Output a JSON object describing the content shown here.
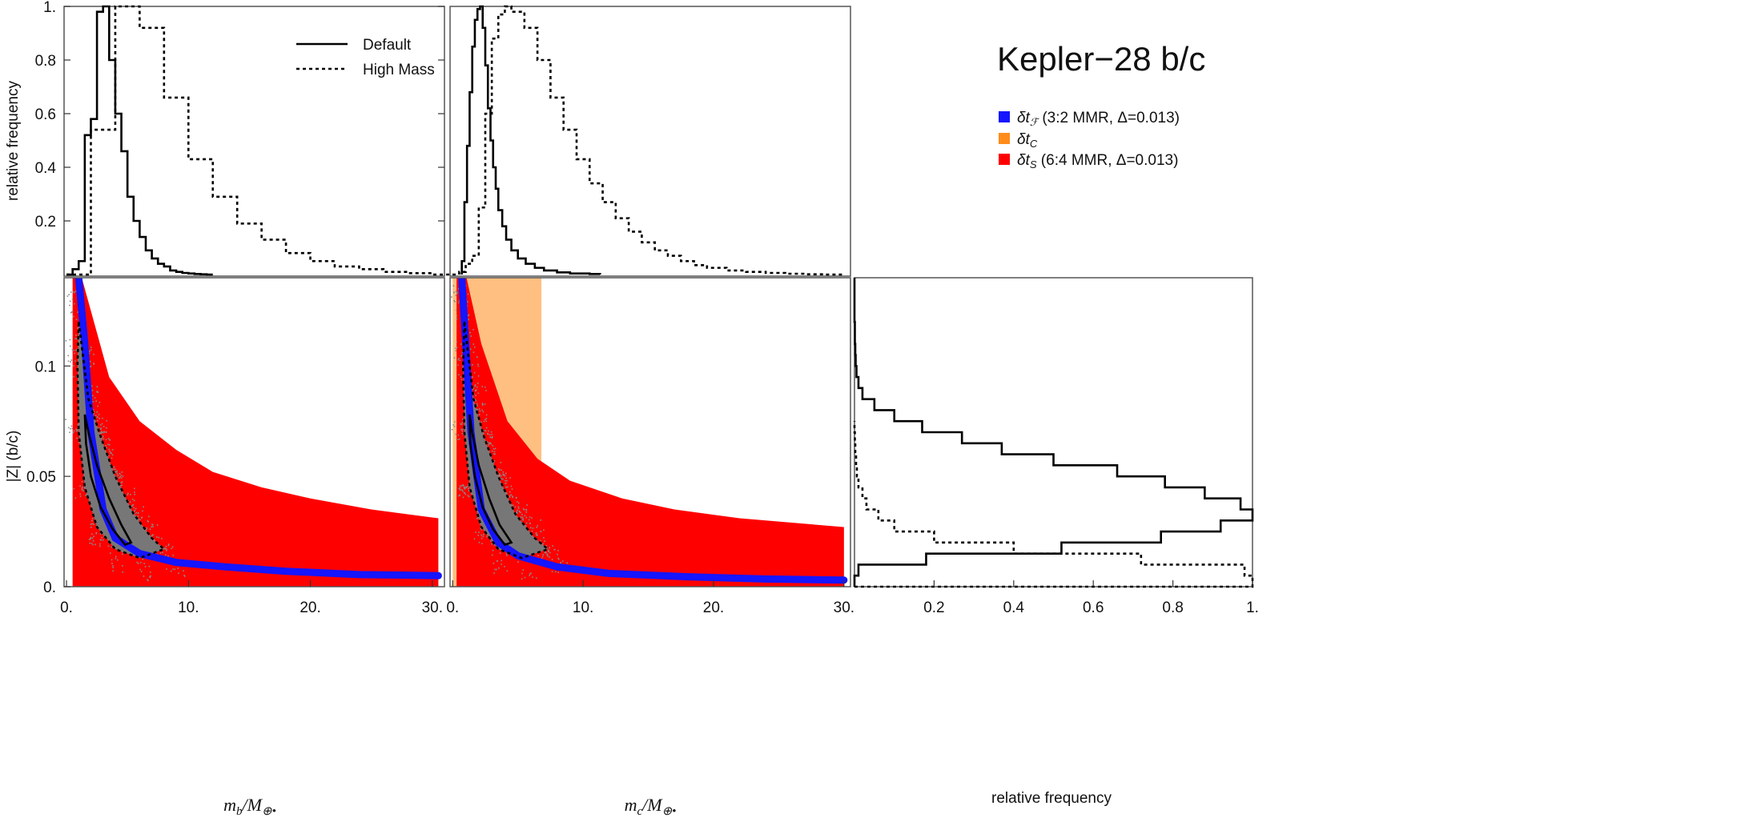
{
  "title": "Kepler−28 b/c",
  "colors": {
    "blue": "#1515ff",
    "red": "#ff0000",
    "orange": "#ffbf80",
    "gray_points": "#8a8a8a",
    "gray_fill": "#777777"
  },
  "legend_lines": [
    {
      "label": "Default",
      "style": "solid"
    },
    {
      "label": "High Mass",
      "style": "dotted"
    }
  ],
  "legend_regions": [
    {
      "symbol": "δt",
      "sub": "ℱ",
      "suffix": " (3:2 MMR, Δ=0.013)",
      "color": "#1515ff"
    },
    {
      "symbol": "δt",
      "sub": "C",
      "suffix": "",
      "color": "#ff8c1a"
    },
    {
      "symbol": "δt",
      "sub": "S",
      "suffix": " (6:4 MMR, Δ=0.013)",
      "color": "#ff0000"
    }
  ],
  "chart_data": [
    {
      "id": "hist_mb",
      "type": "histogram",
      "ylabel": "relative frequency",
      "xlim": [
        -0.2,
        31
      ],
      "ylim": [
        0,
        1
      ],
      "yticks": [
        0.2,
        0.4,
        0.6,
        0.8,
        1
      ],
      "ytick_labels": [
        "0.2",
        "0.4",
        "0.6",
        "0.8",
        "1."
      ],
      "series": [
        {
          "name": "Default",
          "style": "solid",
          "bin_width": 0.5,
          "values": [
            0.0,
            0.02,
            0.05,
            0.52,
            0.58,
            0.98,
            1.0,
            0.8,
            0.6,
            0.46,
            0.29,
            0.2,
            0.14,
            0.09,
            0.06,
            0.04,
            0.03,
            0.015,
            0.01,
            0.006,
            0.004,
            0.002,
            0.001,
            0.0
          ]
        },
        {
          "name": "High Mass",
          "style": "dotted",
          "bin_width": 2,
          "values": [
            0.0,
            0.54,
            1.0,
            0.92,
            0.66,
            0.43,
            0.29,
            0.19,
            0.13,
            0.08,
            0.05,
            0.03,
            0.02,
            0.01,
            0.005,
            0.0
          ]
        }
      ]
    },
    {
      "id": "hist_mc",
      "type": "histogram",
      "xlim": [
        -0.2,
        30.5
      ],
      "ylim": [
        0,
        1
      ],
      "series": [
        {
          "name": "Default",
          "style": "solid",
          "x": [
            0.7,
            0.9,
            1.1,
            1.3,
            1.5,
            1.7,
            1.9,
            2.1,
            2.3,
            2.5,
            2.7,
            2.9,
            3.1,
            3.3,
            3.5,
            3.8,
            4.1,
            4.5,
            5.0,
            5.6,
            6.3,
            7.0,
            8.0,
            9.0,
            10.5,
            11.3
          ],
          "values": [
            0.05,
            0.27,
            0.48,
            0.68,
            0.85,
            0.95,
            0.99,
            1.0,
            0.92,
            0.78,
            0.62,
            0.5,
            0.4,
            0.32,
            0.24,
            0.18,
            0.13,
            0.09,
            0.06,
            0.04,
            0.025,
            0.015,
            0.008,
            0.004,
            0.002
          ]
        },
        {
          "name": "High Mass",
          "style": "dotted",
          "x": [
            0.5,
            1.0,
            1.5,
            2.0,
            2.5,
            3.0,
            3.5,
            4.0,
            4.5,
            5.5,
            6.5,
            7.5,
            8.5,
            9.5,
            10.5,
            11.5,
            12.5,
            13.5,
            14.5,
            15.5,
            16.5,
            17.5,
            18.5,
            19.5,
            21,
            22.5,
            24,
            25.5,
            27,
            28.5,
            30
          ],
          "values": [
            0.01,
            0.04,
            0.07,
            0.25,
            0.6,
            0.88,
            0.97,
            1.0,
            0.98,
            0.92,
            0.8,
            0.66,
            0.54,
            0.43,
            0.34,
            0.27,
            0.21,
            0.16,
            0.12,
            0.09,
            0.07,
            0.05,
            0.035,
            0.025,
            0.015,
            0.01,
            0.006,
            0.003,
            0.001,
            0.0
          ]
        }
      ]
    },
    {
      "id": "scatter_mb",
      "type": "scatter",
      "xlabel_main": "m",
      "xlabel_sub": "b",
      "xlabel_rest": "/M",
      "xlabel_sub2": "⊕•",
      "ylabel": "|Z| (b/c)",
      "xlim": [
        -0.2,
        31
      ],
      "ylim": [
        0,
        0.14
      ],
      "xticks": [
        0,
        10,
        20,
        30
      ],
      "xtick_labels": [
        "0.",
        "10.",
        "20.",
        "30."
      ],
      "yticks": [
        0,
        0.05,
        0.1
      ],
      "ytick_labels": [
        "0.",
        "0.05",
        "0.1"
      ],
      "red_region": {
        "x": [
          0.5,
          30.5
        ],
        "upper": [
          [
            0.5,
            0.155
          ],
          [
            3.5,
            0.095
          ],
          [
            6,
            0.075
          ],
          [
            9,
            0.062
          ],
          [
            12,
            0.052
          ],
          [
            16,
            0.045
          ],
          [
            20,
            0.04
          ],
          [
            25,
            0.035
          ],
          [
            30.5,
            0.031
          ]
        ],
        "lower": 0
      },
      "blue_curve": [
        [
          1.0,
          0.14
        ],
        [
          1.5,
          0.11
        ],
        [
          2,
          0.07
        ],
        [
          3,
          0.035
        ],
        [
          4,
          0.022
        ],
        [
          6,
          0.015
        ],
        [
          9,
          0.011
        ],
        [
          13,
          0.009
        ],
        [
          18,
          0.007
        ],
        [
          24,
          0.0055
        ],
        [
          30.5,
          0.005
        ]
      ],
      "contour_inner": [
        [
          1.5,
          0.078
        ],
        [
          1.8,
          0.07
        ],
        [
          2.5,
          0.055
        ],
        [
          3.5,
          0.04
        ],
        [
          4.5,
          0.028
        ],
        [
          5.3,
          0.02
        ],
        [
          4.8,
          0.019
        ],
        [
          3.8,
          0.026
        ],
        [
          2.8,
          0.036
        ],
        [
          2.0,
          0.05
        ],
        [
          1.6,
          0.065
        ],
        [
          1.5,
          0.078
        ]
      ],
      "contour_outer": [
        [
          1.0,
          0.12
        ],
        [
          1.8,
          0.085
        ],
        [
          2.8,
          0.068
        ],
        [
          4.0,
          0.05
        ],
        [
          5.5,
          0.033
        ],
        [
          7.0,
          0.022
        ],
        [
          8.0,
          0.017
        ],
        [
          6.0,
          0.013
        ],
        [
          4.0,
          0.017
        ],
        [
          2.5,
          0.027
        ],
        [
          1.5,
          0.045
        ],
        [
          1.0,
          0.07
        ],
        [
          0.9,
          0.1
        ],
        [
          1.0,
          0.12
        ]
      ]
    },
    {
      "id": "scatter_mc",
      "type": "scatter",
      "xlabel_main": "m",
      "xlabel_sub": "c",
      "xlabel_rest": "/M",
      "xlabel_sub2": "⊕•",
      "xlim": [
        -0.2,
        30.5
      ],
      "ylim": [
        0,
        0.14
      ],
      "xticks": [
        0,
        10,
        20,
        30
      ],
      "xtick_labels": [
        "0.",
        "10.",
        "20.",
        "30."
      ],
      "orange_region": {
        "x": [
          0.0,
          6.8
        ]
      },
      "red_region": {
        "x": [
          0.3,
          30
        ],
        "upper": [
          [
            0.3,
            0.16
          ],
          [
            2.2,
            0.11
          ],
          [
            4.2,
            0.075
          ],
          [
            6.5,
            0.058
          ],
          [
            9,
            0.048
          ],
          [
            13,
            0.04
          ],
          [
            17,
            0.035
          ],
          [
            22,
            0.031
          ],
          [
            30,
            0.027
          ]
        ],
        "lower": 0
      },
      "blue_curve": [
        [
          0.7,
          0.14
        ],
        [
          1.0,
          0.11
        ],
        [
          1.4,
          0.07
        ],
        [
          2.2,
          0.035
        ],
        [
          3.5,
          0.02
        ],
        [
          5,
          0.014
        ],
        [
          8,
          0.009
        ],
        [
          12,
          0.006
        ],
        [
          18,
          0.0045
        ],
        [
          24,
          0.0035
        ],
        [
          30,
          0.003
        ]
      ],
      "contour_inner": [
        [
          1.3,
          0.078
        ],
        [
          1.5,
          0.07
        ],
        [
          2.0,
          0.055
        ],
        [
          2.8,
          0.04
        ],
        [
          3.6,
          0.028
        ],
        [
          4.5,
          0.02
        ],
        [
          4.0,
          0.019
        ],
        [
          3.1,
          0.026
        ],
        [
          2.3,
          0.036
        ],
        [
          1.7,
          0.05
        ],
        [
          1.35,
          0.065
        ],
        [
          1.3,
          0.078
        ]
      ],
      "contour_outer": [
        [
          0.9,
          0.12
        ],
        [
          1.6,
          0.085
        ],
        [
          2.4,
          0.068
        ],
        [
          3.5,
          0.05
        ],
        [
          4.8,
          0.033
        ],
        [
          6.3,
          0.022
        ],
        [
          7.3,
          0.017
        ],
        [
          5.3,
          0.013
        ],
        [
          3.5,
          0.017
        ],
        [
          2.2,
          0.027
        ],
        [
          1.3,
          0.045
        ],
        [
          0.9,
          0.07
        ],
        [
          0.8,
          0.1
        ],
        [
          0.9,
          0.12
        ]
      ]
    },
    {
      "id": "hist_z",
      "type": "histogram",
      "orientation": "horizontal",
      "xlabel": "relative frequency",
      "xlim": [
        0,
        1
      ],
      "ylim": [
        0,
        0.14
      ],
      "xticks": [
        0.2,
        0.4,
        0.6,
        0.8,
        1
      ],
      "xtick_labels": [
        "0.2",
        "0.4",
        "0.6",
        "0.8",
        "1."
      ],
      "series": [
        {
          "name": "Default",
          "style": "solid",
          "bin_width": 0.005,
          "y_start": 0.0,
          "values": [
            0.0,
            0.01,
            0.18,
            0.52,
            0.77,
            0.92,
            1.0,
            0.97,
            0.88,
            0.78,
            0.66,
            0.5,
            0.37,
            0.27,
            0.17,
            0.1,
            0.05,
            0.02,
            0.01,
            0.005,
            0.003,
            0.002,
            0.001,
            0.001,
            0.0,
            0.0,
            0.0,
            0.0
          ]
        },
        {
          "name": "High Mass",
          "style": "dotted",
          "bin_width": 0.005,
          "y_start": 0.0,
          "values": [
            1.0,
            0.98,
            0.72,
            0.4,
            0.2,
            0.1,
            0.06,
            0.03,
            0.02,
            0.01,
            0.006,
            0.004,
            0.002,
            0.001,
            0.0
          ]
        }
      ]
    }
  ]
}
